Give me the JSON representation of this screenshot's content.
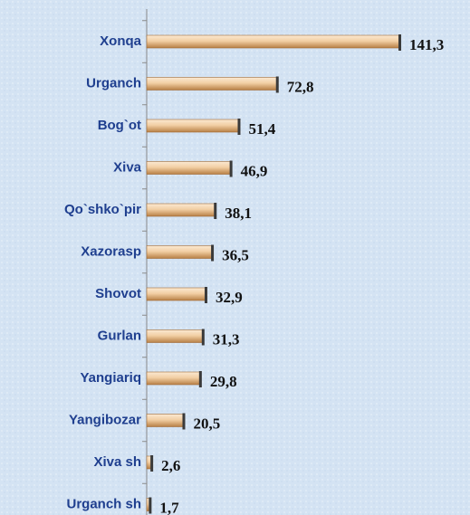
{
  "chart_data": {
    "type": "bar",
    "orientation": "horizontal",
    "categories": [
      "Xonqa",
      "Urganch",
      "Bog`ot",
      "Xiva",
      "Qo`shko`pir",
      "Xazorasp",
      "Shovot",
      "Gurlan",
      "Yangiariq",
      "Yangibozar",
      "Xiva sh",
      "Urganch sh"
    ],
    "values": [
      141.3,
      72.8,
      51.4,
      46.9,
      38.1,
      36.5,
      32.9,
      31.3,
      29.8,
      20.5,
      2.6,
      1.7
    ],
    "value_labels": [
      "141,3",
      "72,8",
      "51,4",
      "46,9",
      "38,1",
      "36,5",
      "32,9",
      "31,3",
      "29,8",
      "20,5",
      "2,6",
      "1,7"
    ],
    "color": "#d9a56c"
  }
}
